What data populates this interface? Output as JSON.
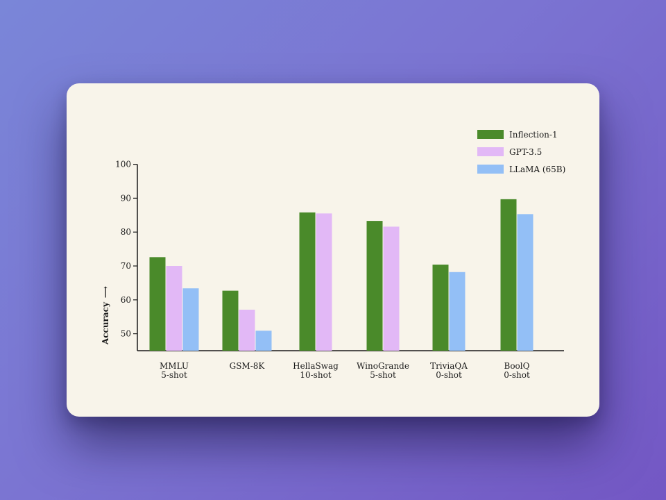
{
  "chart_data": {
    "type": "bar",
    "title": "",
    "xlabel": "",
    "ylabel": "Accuracy",
    "ylabel_arrow": "⟶",
    "ylim": [
      45,
      100
    ],
    "yticks": [
      50,
      60,
      70,
      80,
      90,
      100
    ],
    "grid": false,
    "legend_position": "top-right",
    "categories": [
      {
        "name": "MMLU",
        "sub": "5-shot"
      },
      {
        "name": "GSM-8K",
        "sub": ""
      },
      {
        "name": "HellaSwag",
        "sub": "10-shot"
      },
      {
        "name": "WinoGrande",
        "sub": "5-shot"
      },
      {
        "name": "TriviaQA",
        "sub": "0-shot"
      },
      {
        "name": "BoolQ",
        "sub": "0-shot"
      }
    ],
    "series": [
      {
        "name": "Inflection-1",
        "color": "#4a8a2a",
        "values": [
          72.6,
          62.7,
          85.8,
          83.3,
          70.4,
          89.7
        ]
      },
      {
        "name": "GPT-3.5",
        "color": "#e2b8f6",
        "values": [
          70.0,
          57.1,
          85.5,
          81.6,
          null,
          null
        ]
      },
      {
        "name": "LLaMA (65B)",
        "color": "#93bff6",
        "values": [
          63.4,
          50.9,
          null,
          null,
          68.2,
          85.3
        ]
      }
    ]
  }
}
